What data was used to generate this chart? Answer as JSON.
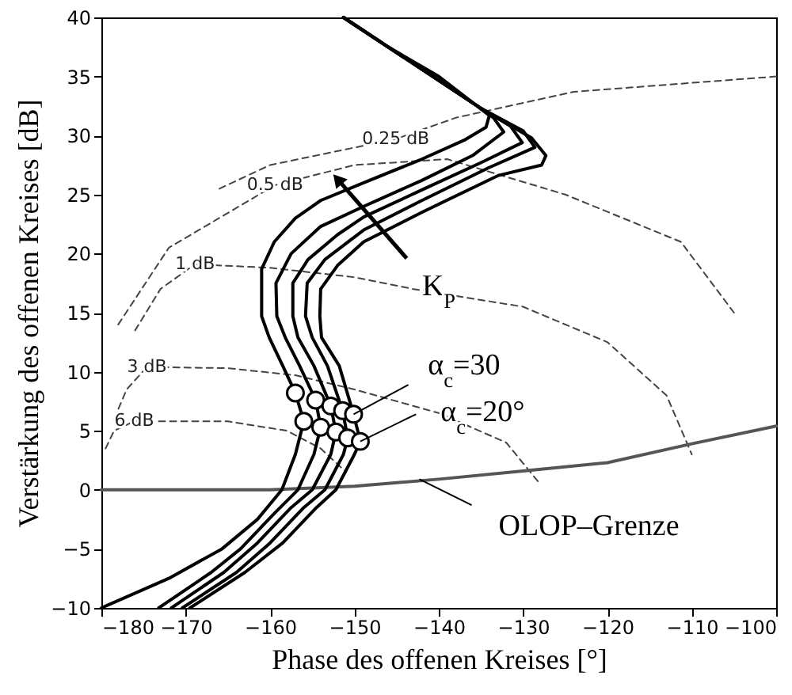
{
  "chart_data": {
    "type": "line",
    "xlabel": "Phase des offenen Kreises [°]",
    "ylabel": "Verstärkung des offenen Kreises [dB]",
    "xlim": [
      -180,
      -100
    ],
    "ylim": [
      -10,
      40
    ],
    "xticks": [
      -180,
      -170,
      -160,
      -150,
      -140,
      -130,
      -120,
      -110,
      -100
    ],
    "yticks": [
      -10,
      -5,
      0,
      5,
      10,
      15,
      20,
      25,
      30,
      35,
      40
    ],
    "series": [
      {
        "name": "0.25 dB",
        "color": "#444444",
        "line_style": "dashed",
        "x": [
          -166,
          -160,
          -145.1,
          -138,
          -124,
          -100
        ],
        "values": [
          25.5,
          27.5,
          29.7,
          31.5,
          33.7,
          35
        ]
      },
      {
        "name": "0.5 dB",
        "color": "#444444",
        "line_style": "dashed",
        "x": [
          -178,
          -172,
          -159.4,
          -150,
          -139,
          -125,
          -111.3,
          -105
        ],
        "values": [
          14,
          20.5,
          25.8,
          27.5,
          28,
          25,
          21,
          15
        ]
      },
      {
        "name": "1 dB",
        "color": "#444444",
        "line_style": "dashed",
        "x": [
          -176,
          -173,
          -168.9,
          -160,
          -150,
          -143,
          -130,
          -120,
          -113,
          -110
        ],
        "values": [
          13.5,
          17,
          19.1,
          18.8,
          18,
          17,
          15.5,
          12.5,
          8,
          3
        ]
      },
      {
        "name": "3 dB",
        "color": "#444444",
        "line_style": "dashed",
        "x": [
          -178.5,
          -177,
          -174.6,
          -165,
          -157,
          -150,
          -140,
          -132,
          -128
        ],
        "values": [
          6,
          8.5,
          10.4,
          10.3,
          9.7,
          8.5,
          6.5,
          4,
          0.5
        ]
      },
      {
        "name": "6 dB",
        "color": "#444444",
        "line_style": "dashed",
        "x": [
          -179.5,
          -178.5,
          -176.1,
          -165,
          -158,
          -154,
          -151
        ],
        "values": [
          3.5,
          5,
          5.8,
          5.8,
          5,
          3.5,
          1.5
        ]
      },
      {
        "color": "#555555",
        "line_style": "solid",
        "x": [
          -180,
          -160,
          -150,
          -140,
          -130,
          -120,
          -110,
          -100
        ],
        "values": [
          0,
          0,
          0.3,
          0.9,
          1.6,
          2.3,
          3.9,
          5.4
        ]
      },
      {
        "color": "#000000",
        "line_style": "solid",
        "x": [
          -180,
          -172,
          -165.7,
          -161.5,
          -158.6,
          -157,
          -156,
          -157,
          -158.5,
          -160.1,
          -161,
          -161,
          -159.5,
          -157,
          -154,
          -148.9,
          -142,
          -137,
          -134.4,
          -134,
          -140,
          -146,
          -151.3
        ],
        "values": [
          -10,
          -7.5,
          -5,
          -2.5,
          0,
          3,
          5.8,
          8.2,
          10.5,
          12.9,
          14.7,
          18.7,
          21,
          23,
          24.5,
          26,
          28,
          29.6,
          30.7,
          31.7,
          35,
          37.5,
          40
        ]
      },
      {
        "color": "#000000",
        "line_style": "solid",
        "x": [
          -173.2,
          -167,
          -163.5,
          -159.5,
          -156.7,
          -154.8,
          -154,
          -154.6,
          -156.5,
          -158.2,
          -159.2,
          -159.3,
          -157.5,
          -154,
          -148.9,
          -142,
          -136,
          -132.3,
          -133.5,
          -135,
          -151.3
        ],
        "values": [
          -10,
          -7,
          -5,
          -2,
          0,
          3,
          5.3,
          7.6,
          10.5,
          12.9,
          14.7,
          17.5,
          20,
          22.3,
          24,
          26.2,
          28.3,
          30.3,
          31.5,
          32.3,
          40
        ]
      },
      {
        "color": "#000000",
        "line_style": "solid",
        "x": [
          -171.7,
          -165.5,
          -161.5,
          -157.5,
          -155,
          -152.8,
          -152.2,
          -152.8,
          -154.8,
          -156.7,
          -157.3,
          -157.3,
          -155.5,
          -152,
          -148.9,
          -142,
          -135,
          -130.1,
          -131.5,
          -135,
          -151.3
        ],
        "values": [
          -10,
          -7,
          -4.5,
          -1.5,
          0,
          3,
          4.9,
          7.1,
          10.5,
          12.9,
          14.7,
          17.5,
          19.5,
          21.6,
          23.1,
          25.4,
          27.7,
          29.4,
          30.8,
          32.3,
          40
        ]
      },
      {
        "color": "#000000",
        "line_style": "solid",
        "x": [
          -170.4,
          -164,
          -160,
          -156,
          -153.5,
          -151.3,
          -150.8,
          -151.4,
          -153.2,
          -155,
          -155.8,
          -155.6,
          -153.5,
          -148.9,
          -142,
          -134,
          -128.6,
          -130,
          -135,
          -151.3
        ],
        "values": [
          -10,
          -7,
          -4.5,
          -1.5,
          0,
          3,
          4.4,
          6.7,
          10.5,
          12.9,
          14.7,
          17.5,
          19.5,
          22,
          24.5,
          27.3,
          29,
          30.4,
          32.3,
          40
        ]
      },
      {
        "color": "#000000",
        "line_style": "solid",
        "x": [
          -169.5,
          -163,
          -158.5,
          -154.5,
          -152.2,
          -150,
          -149.3,
          -150.1,
          -151.8,
          -153.9,
          -154.1,
          -154,
          -152,
          -148.9,
          -142,
          -133,
          -127.8,
          -127.3,
          -129,
          -135,
          -151.3
        ],
        "values": [
          -10,
          -7,
          -4.5,
          -1.5,
          0,
          3,
          4.1,
          6.4,
          10.5,
          12.9,
          14.7,
          17,
          19,
          21,
          23.5,
          26.6,
          27.5,
          28.3,
          29.8,
          32.3,
          40
        ]
      },
      {
        "type": "scatter",
        "marker": "circle",
        "color": "#000000",
        "x": [
          -157,
          -156,
          -154.6,
          -154,
          -152.8,
          -152.2,
          -151.4,
          -150.8,
          -150.1,
          -149.3
        ],
        "values": [
          8.2,
          5.8,
          7.6,
          5.3,
          7.1,
          4.9,
          6.7,
          4.4,
          6.4,
          4.1
        ]
      }
    ],
    "annotations": [
      {
        "text": "K$_{P}$",
        "x": -152,
        "y": 26.3
      },
      {
        "text": "α$_{c}$=30",
        "x": -150.1,
        "y": 6.4
      },
      {
        "text": "α$_{c}$=20°",
        "x": -149.3,
        "y": 4.1
      },
      {
        "text": "OLOP–Grenze",
        "x": -142.3,
        "y": 0.9
      }
    ]
  }
}
